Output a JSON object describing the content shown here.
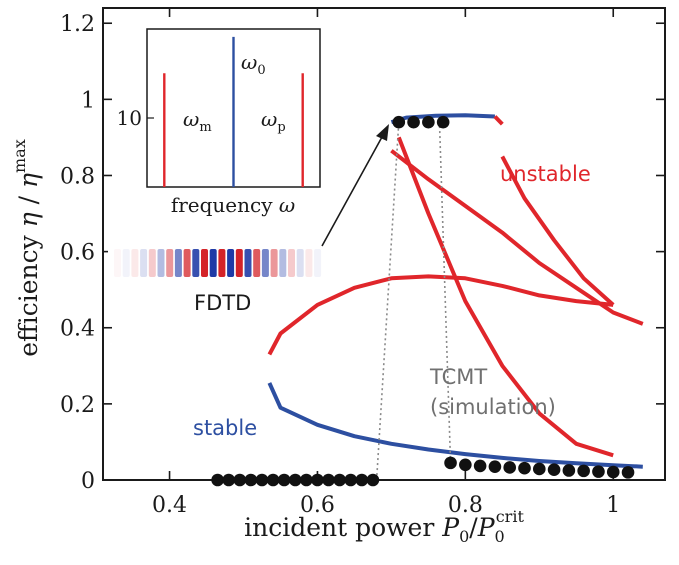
{
  "colors": {
    "stable": "#2d4fa1",
    "unstable": "#e0262b",
    "fdtd_points": "#111111",
    "tcmt_text": "#707070",
    "axis": "#1a1a1a"
  },
  "chart_data": [
    {
      "type": "line",
      "title": "",
      "xlabel": "incident power P0/P0^crit",
      "xlabel_parts": {
        "main": "incident power ",
        "var": "P",
        "sub1": "0",
        "slash": "/",
        "var2": "P",
        "sub2": "0",
        "sup2": "crit"
      },
      "ylabel": "efficiency η / η^max",
      "ylabel_parts": {
        "main": "efficiency ",
        "eta": "η",
        "slash": " / ",
        "eta2": "η",
        "sup": "max"
      },
      "xlim": [
        0.31,
        1.07
      ],
      "ylim": [
        0,
        1.24
      ],
      "xticks": [
        0.4,
        0.6,
        0.8,
        1.0
      ],
      "xtick_labels": [
        "0.4",
        "0.6",
        "0.8",
        "1"
      ],
      "yticks": [
        0,
        0.2,
        0.4,
        0.6,
        0.8,
        1.0,
        1.2
      ],
      "ytick_labels": [
        "0",
        "0.2",
        "0.4",
        "0.6",
        "0.8",
        "1",
        "1.2"
      ],
      "grid": false,
      "series": [
        {
          "kind": "stable",
          "style": "line",
          "x": [
            0.535,
            0.55,
            0.6,
            0.65,
            0.7,
            0.75,
            0.8,
            0.85,
            0.9,
            0.95,
            1.0,
            1.04
          ],
          "y": [
            0.255,
            0.19,
            0.145,
            0.115,
            0.095,
            0.08,
            0.068,
            0.058,
            0.05,
            0.044,
            0.039,
            0.035
          ]
        },
        {
          "kind": "stable",
          "style": "line",
          "x": [
            0.7,
            0.72,
            0.76,
            0.8,
            0.84
          ],
          "y": [
            0.94,
            0.952,
            0.957,
            0.958,
            0.955
          ]
        },
        {
          "kind": "unstable",
          "style": "line",
          "x": [
            0.84,
            0.85
          ],
          "y": [
            0.955,
            0.935
          ]
        },
        {
          "kind": "unstable",
          "style": "line",
          "x": [
            0.535,
            0.55,
            0.6,
            0.65,
            0.7,
            0.75,
            0.8,
            0.85,
            0.9,
            0.95,
            1.0
          ],
          "y": [
            0.33,
            0.385,
            0.46,
            0.505,
            0.53,
            0.535,
            0.53,
            0.51,
            0.485,
            0.47,
            0.46
          ]
        },
        {
          "kind": "unstable",
          "style": "line",
          "x": [
            0.7,
            0.75,
            0.8,
            0.85,
            0.9,
            0.95,
            1.0,
            1.04
          ],
          "y": [
            0.865,
            0.79,
            0.72,
            0.65,
            0.57,
            0.505,
            0.44,
            0.41
          ]
        },
        {
          "kind": "unstable",
          "style": "line",
          "x": [
            0.71,
            0.75,
            0.8,
            0.85,
            0.9,
            0.95,
            1.0
          ],
          "y": [
            0.9,
            0.7,
            0.47,
            0.3,
            0.175,
            0.095,
            0.065
          ],
          "note": "steep red curve from upper branch"
        },
        {
          "kind": "unstable",
          "style": "line",
          "x": [
            0.85,
            0.88,
            0.92,
            0.96,
            1.0
          ],
          "y": [
            0.85,
            0.74,
            0.63,
            0.53,
            0.46
          ]
        },
        {
          "kind": "fdtd",
          "style": "points",
          "x": [
            0.465,
            0.48,
            0.495,
            0.51,
            0.525,
            0.54,
            0.555,
            0.57,
            0.585,
            0.6,
            0.615,
            0.63,
            0.645,
            0.66,
            0.675,
            0.71,
            0.73,
            0.75,
            0.77,
            0.78,
            0.8,
            0.82,
            0.84,
            0.86,
            0.88,
            0.9,
            0.92,
            0.94,
            0.96,
            0.98,
            1.0,
            1.02
          ],
          "y": [
            0.0,
            0.0,
            0.0,
            0.0,
            0.0,
            0.0,
            0.0,
            0.0,
            0.0,
            0.0,
            0.0,
            0.0,
            0.0,
            0.0,
            0.0,
            0.94,
            0.94,
            0.94,
            0.94,
            0.045,
            0.04,
            0.037,
            0.035,
            0.033,
            0.031,
            0.029,
            0.027,
            0.025,
            0.024,
            0.022,
            0.021,
            0.02
          ]
        }
      ],
      "annotations": {
        "unstable": "unstable",
        "stable": "stable",
        "tcmt_line1": "TCMT",
        "tcmt_line2": "(simulation)",
        "fdtd": "FDTD"
      }
    },
    {
      "type": "line",
      "title": "",
      "xlabel": "frequency ω",
      "xlabel_parts": {
        "main": "frequency ",
        "var": "ω"
      },
      "ytick_labels": [
        "10"
      ],
      "peaks": [
        {
          "name": "ωm",
          "label_main": "ω",
          "label_sub": "m",
          "x": 0.1,
          "height": 0.72,
          "color_key": "unstable"
        },
        {
          "name": "ω0",
          "label_main": "ω",
          "label_sub": "0",
          "x": 0.5,
          "height": 0.95,
          "color_key": "stable"
        },
        {
          "name": "ωp",
          "label_main": "ω",
          "label_sub": "p",
          "x": 0.9,
          "height": 0.72,
          "color_key": "unstable"
        }
      ]
    }
  ]
}
